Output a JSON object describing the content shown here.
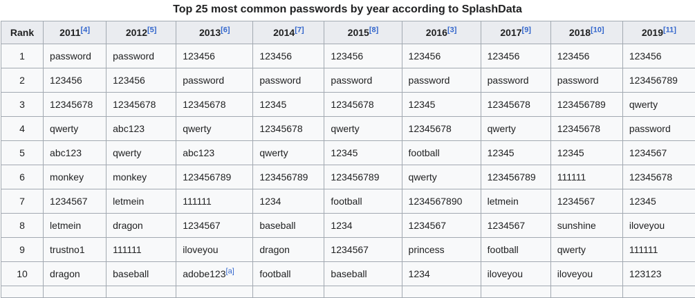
{
  "caption": "Top 25 most common passwords by year according to SplashData",
  "colors": {
    "page_bg": "#ffffff",
    "header_bg": "#eaecf0",
    "row_bg": "#f8f9fa",
    "border": "#a2a9b1",
    "text": "#202122",
    "link": "#3366cc"
  },
  "table": {
    "columns": [
      {
        "label": "Rank",
        "ref": null
      },
      {
        "label": "2011",
        "ref": "[4]"
      },
      {
        "label": "2012",
        "ref": "[5]"
      },
      {
        "label": "2013",
        "ref": "[6]"
      },
      {
        "label": "2014",
        "ref": "[7]"
      },
      {
        "label": "2015",
        "ref": "[8]"
      },
      {
        "label": "2016",
        "ref": "[3]"
      },
      {
        "label": "2017",
        "ref": "[9]"
      },
      {
        "label": "2018",
        "ref": "[10]"
      },
      {
        "label": "2019",
        "ref": "[11]"
      }
    ],
    "rows": [
      {
        "rank": "1",
        "cells": [
          "password",
          "password",
          "123456",
          "123456",
          "123456",
          "123456",
          "123456",
          "123456",
          "123456"
        ]
      },
      {
        "rank": "2",
        "cells": [
          "123456",
          "123456",
          "password",
          "password",
          "password",
          "password",
          "password",
          "password",
          "123456789"
        ]
      },
      {
        "rank": "3",
        "cells": [
          "12345678",
          "12345678",
          "12345678",
          "12345",
          "12345678",
          "12345",
          "12345678",
          "123456789",
          "qwerty"
        ]
      },
      {
        "rank": "4",
        "cells": [
          "qwerty",
          "abc123",
          "qwerty",
          "12345678",
          "qwerty",
          "12345678",
          "qwerty",
          "12345678",
          "password"
        ]
      },
      {
        "rank": "5",
        "cells": [
          "abc123",
          "qwerty",
          "abc123",
          "qwerty",
          "12345",
          "football",
          "12345",
          "12345",
          "1234567"
        ]
      },
      {
        "rank": "6",
        "cells": [
          "monkey",
          "monkey",
          "123456789",
          "123456789",
          "123456789",
          "qwerty",
          "123456789",
          "111111",
          "12345678"
        ]
      },
      {
        "rank": "7",
        "cells": [
          "1234567",
          "letmein",
          "111111",
          "1234",
          "football",
          "1234567890",
          "letmein",
          "1234567",
          "12345"
        ]
      },
      {
        "rank": "8",
        "cells": [
          "letmein",
          "dragon",
          "1234567",
          "baseball",
          "1234",
          "1234567",
          "1234567",
          "sunshine",
          "iloveyou"
        ]
      },
      {
        "rank": "9",
        "cells": [
          "trustno1",
          "111111",
          "iloveyou",
          "dragon",
          "1234567",
          "princess",
          "football",
          "qwerty",
          "111111"
        ]
      },
      {
        "rank": "10",
        "cells": [
          "dragon",
          "baseball",
          {
            "text": "adobe123",
            "ref": "[a]"
          },
          "football",
          "baseball",
          "1234",
          "iloveyou",
          "iloveyou",
          "123123"
        ]
      }
    ],
    "partial_row": {
      "rank": "",
      "cells": [
        "",
        "",
        "",
        "",
        "",
        "",
        "",
        "",
        ""
      ]
    }
  }
}
